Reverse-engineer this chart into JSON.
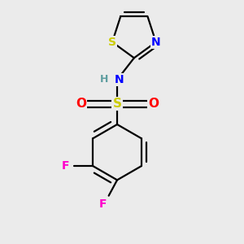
{
  "background_color": "#ebebeb",
  "figsize": [
    3.0,
    3.0
  ],
  "dpi": 100,
  "colors": {
    "S_sulfonyl": "#cccc00",
    "O": "#ff0000",
    "N": "#0000ff",
    "H": "#5f9ea0",
    "C": "#000000",
    "F": "#ff00cc",
    "S_thiazole": "#cccc00",
    "bond": "#000000"
  },
  "lw": 1.6,
  "fs": 10
}
